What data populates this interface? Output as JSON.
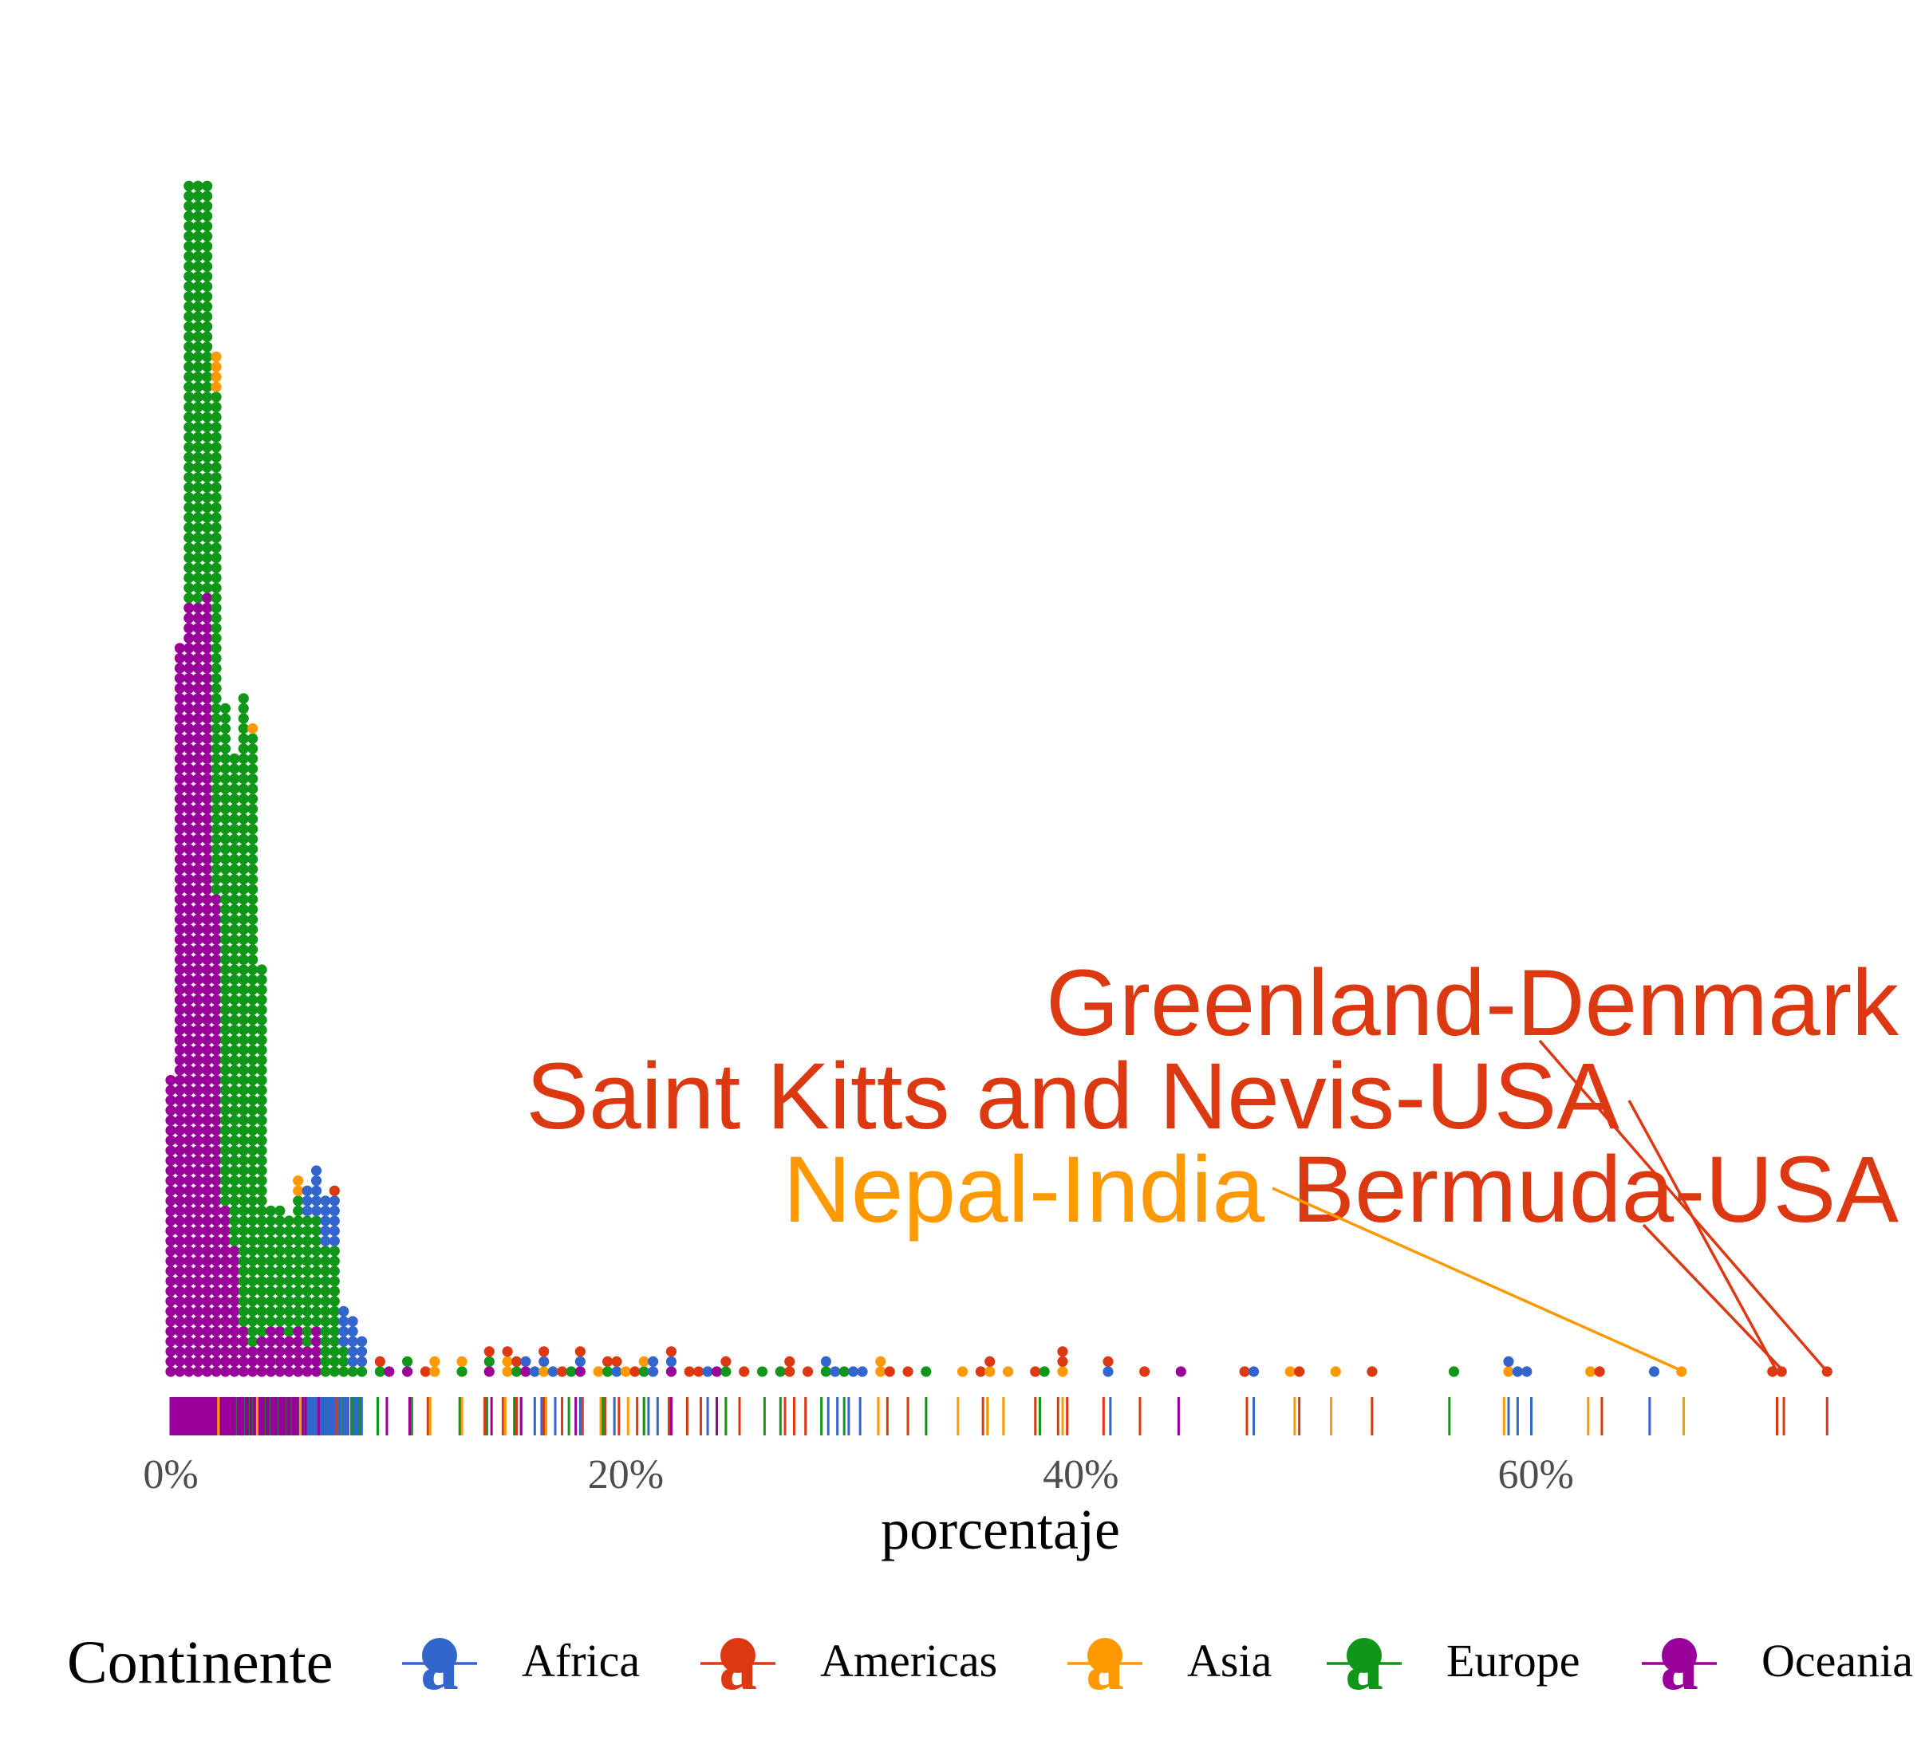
{
  "chart_data": {
    "type": "dotplot",
    "xlabel": "porcentaje",
    "xlim": [
      0,
      73
    ],
    "x_ticks": [
      {
        "value": 0,
        "label": "0%"
      },
      {
        "value": 20,
        "label": "20%"
      },
      {
        "value": 40,
        "label": "40%"
      },
      {
        "value": 60,
        "label": "60%"
      }
    ],
    "y_axis_visible": false,
    "grid": false,
    "rug": true,
    "dot_bin_width": 0.4,
    "legend": {
      "title": "Continente",
      "position": "bottom",
      "entries": [
        {
          "name": "Africa",
          "color": "#3366cc"
        },
        {
          "name": "Americas",
          "color": "#dc3912"
        },
        {
          "name": "Asia",
          "color": "#ff9900"
        },
        {
          "name": "Europe",
          "color": "#109618"
        },
        {
          "name": "Oceania",
          "color": "#990099"
        }
      ]
    },
    "series": [
      {
        "name": "Africa",
        "color": "#3366cc",
        "values": [
          15.4,
          16.0,
          16.3,
          16.9,
          18.0,
          19.5,
          21.0,
          21.4,
          21.9,
          23.6,
          28.9,
          29.3,
          29.8,
          30.3,
          41.3,
          47.6,
          58.8,
          59.2,
          59.8,
          65.0
        ]
      },
      {
        "name": "Americas",
        "color": "#dc3912",
        "values": [
          7.3,
          9.1,
          11.3,
          13.8,
          14.6,
          15.2,
          16.4,
          17.2,
          18.1,
          19.1,
          19.7,
          20.5,
          21.9,
          22.7,
          23.3,
          24.4,
          25.0,
          27.0,
          27.4,
          27.9,
          31.5,
          32.4,
          35.7,
          35.9,
          38.0,
          39.0,
          39.4,
          41.0,
          42.6,
          47.3,
          49.6,
          52.8,
          62.9,
          70.6,
          70.9,
          72.8
        ]
      },
      {
        "name": "Asia",
        "color": "#ff9900",
        "values": [
          2.1,
          2.1,
          2.1,
          2.1,
          3.8,
          5.7,
          5.7,
          11.4,
          11.4,
          12.8,
          14.7,
          14.7,
          16.5,
          18.9,
          20.1,
          20.8,
          31.1,
          31.1,
          34.6,
          35.9,
          36.6,
          39.2,
          49.4,
          51.0,
          58.6,
          62.3,
          66.5
        ]
      },
      {
        "name": "Europe",
        "color": "#109618",
        "values": [
          8.0,
          8.3,
          9.1,
          10.6,
          12.7,
          13.9,
          15.1,
          17.5,
          19.0,
          20.8,
          24.4,
          26.1,
          26.8,
          28.6,
          29.6,
          33.2,
          38.2,
          56.2
        ]
      },
      {
        "name": "Oceania",
        "color": "#990099",
        "values": [
          4.9,
          6.5,
          9.5,
          10.5,
          14.1,
          15.4,
          17.8,
          22.0,
          24.0,
          44.3
        ]
      }
    ],
    "annotations": [
      {
        "label": "Greenland-Denmark",
        "continent": "Americas",
        "x": 72.8,
        "color": "#dc3912"
      },
      {
        "label": "Saint Kitts and Nevis-USA",
        "continent": "Americas",
        "x": 70.6,
        "color": "#dc3912"
      },
      {
        "label": "Bermuda-USA",
        "continent": "Americas",
        "x": 70.9,
        "color": "#dc3912"
      },
      {
        "label": "Nepal-India",
        "continent": "Asia",
        "x": 66.5,
        "color": "#ff9900"
      }
    ]
  }
}
